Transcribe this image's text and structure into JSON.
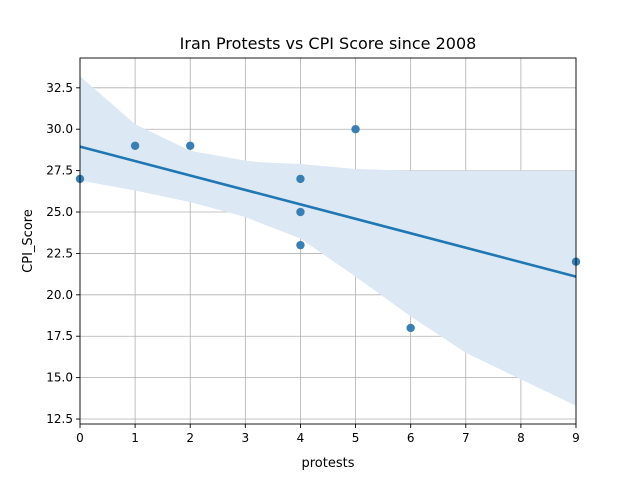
{
  "chart_data": {
    "type": "scatter",
    "title": "Iran Protests vs CPI Score since 2008",
    "xlabel": "protests",
    "ylabel": "CPI_Score",
    "xlim": [
      0,
      9
    ],
    "ylim": [
      12.2,
      34.3
    ],
    "x_ticks": [
      0,
      1,
      2,
      3,
      4,
      5,
      6,
      7,
      8,
      9
    ],
    "y_ticks": [
      12.5,
      15.0,
      17.5,
      20.0,
      22.5,
      25.0,
      27.5,
      30.0,
      32.5
    ],
    "grid": true,
    "points": [
      {
        "x": 0,
        "y": 27
      },
      {
        "x": 1,
        "y": 29
      },
      {
        "x": 2,
        "y": 29
      },
      {
        "x": 4,
        "y": 27
      },
      {
        "x": 4,
        "y": 25
      },
      {
        "x": 4,
        "y": 23
      },
      {
        "x": 5,
        "y": 30
      },
      {
        "x": 6,
        "y": 18
      },
      {
        "x": 9,
        "y": 22
      }
    ],
    "regression": {
      "x": [
        0,
        9
      ],
      "y": [
        28.95,
        21.1
      ]
    },
    "confidence_band": {
      "x": [
        0,
        1,
        2,
        3,
        3.3,
        4,
        5,
        6,
        7,
        8,
        9
      ],
      "upper": [
        33.2,
        30.3,
        28.7,
        28.1,
        28.0,
        27.9,
        27.6,
        27.5,
        27.5,
        27.5,
        27.5
      ],
      "lower": [
        26.9,
        26.3,
        25.6,
        24.7,
        24.3,
        23.4,
        21.1,
        18.7,
        16.5,
        14.9,
        13.3
      ]
    },
    "colors": {
      "points": "#3a7fb4",
      "line": "#1f77b4",
      "band": "#dce8f3",
      "grid": "#b0b0b0"
    }
  }
}
